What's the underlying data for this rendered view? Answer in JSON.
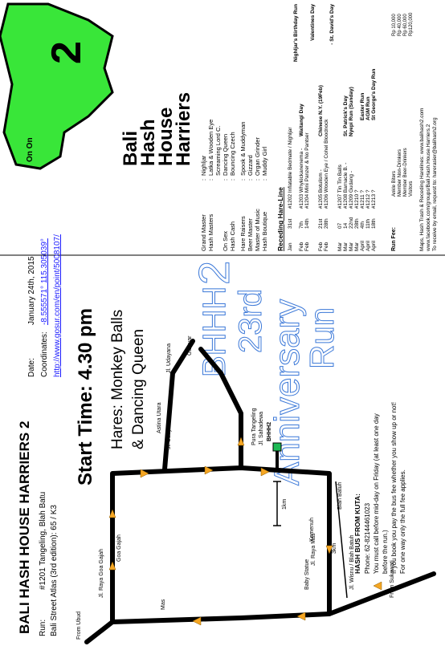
{
  "main": {
    "title": "BALI HASH HOUSE HARRIERS 2",
    "run_label": "Run:",
    "run": "#1201 Tangeling, Blah Batu",
    "atlas": "Bali Street Atlas (3rd edition): 65 / K3",
    "date_label": "Date:",
    "date": "January 24th, 2015",
    "coords_label": "Coordinates:",
    "coords": "-8.555571° 115.305039°",
    "url": "http://www.gosur.com/en/point/5008107/",
    "start_time": "Start Time: 4.30 pm",
    "hares_1": "Hares: Monkey Balls",
    "hares_2": "& Dancing Queen",
    "anniv": [
      "BHHH",
      "2",
      "23rd",
      "Anniversary",
      "Run"
    ]
  },
  "bus": {
    "title": "HASH BUS FROM KUTA:",
    "lines": [
      "Phone: 62-82144461023",
      "You must call before mid-day on Friday  (at least one day",
      "before the run.)",
      "If you book you pay the bus fee whether you show up or not!",
      "For one way only the full fee applies."
    ]
  },
  "map": {
    "labels": [
      "From Ubud",
      "Jl. Raya Goa Gajah",
      "Goa Gajah",
      "Mas",
      "Jl. Raya Mas",
      "Jl. Udayana",
      "Jl. Udayana",
      "Astina Utara",
      "Gianyar",
      "Pura Tangeling",
      "Jl. Sahadewa",
      "BHHH2",
      "1km",
      "Blah Batuh",
      "Kemenuh",
      "3km",
      "Baby Statue",
      "Jl. Wisnu / Blah Batuh",
      "From Sukawati"
    ]
  },
  "logo": {
    "on_on": "On On",
    "lines": [
      "Bali",
      "Hash",
      "House",
      "Harriers"
    ],
    "two": "2"
  },
  "staff": [
    {
      "role": "Grand Master",
      "name": "Nighljar"
    },
    {
      "role": "Hash Masters",
      "name": "Latka & Wooden Eye"
    },
    {
      "name": "Screaming Lord C."
    },
    {
      "role": "On Sex",
      "name": "Dancing Queen"
    },
    {
      "role": "Hash Cash",
      "name": "Bouncing Czech"
    },
    {
      "role": "Hare Raisers",
      "name": "Spook & Muddyman"
    },
    {
      "role": "Beer Master",
      "name": "Gizzard"
    },
    {
      "role": "Master of Music",
      "name": "Organ Grinder"
    },
    {
      "role": "Hash Boutique",
      "name": "Muddy Girl"
    }
  ],
  "hare_line": {
    "title": "Receding Hare-Line",
    "rows": [
      {
        "month": "Jan",
        "day": "31st",
        "run": "#1202 Inflatable Bedmate / Nighljar",
        "note": "Nighljar's Birthday Run"
      },
      {
        "month": "Feb",
        "day": "7th",
        "run": "#1203 Whykickanenema -",
        "event": "Waitangi Day"
      },
      {
        "month": "Feb",
        "day": "14th",
        "run": "#1204 Mini Panzer & No Pantser",
        "note": "Valentines Day"
      },
      {
        "month": "Feb",
        "day": "21st",
        "run": "#1205 Botulism -",
        "event": "Chinese N.Y. (19Feb)"
      },
      {
        "month": "Feb",
        "day": "28th",
        "run": "#1206 Wooden Eye / Cohel Bloodnock",
        "note": "- St. David's Day"
      },
      {
        "month": "Mar",
        "day": "07",
        "run": "#1207 Tin Tin Balls"
      },
      {
        "month": "Mar",
        "day": "14",
        "run": "#1208 Barnacle B. -",
        "event": "St. Patrick's Day"
      },
      {
        "month": "Mar",
        "day": "22nd",
        "run": "#1209 Gudang -",
        "event": "Nyepi Run (Sunday)"
      },
      {
        "month": "Mar",
        "day": "28th",
        "run": "#1210 ?"
      },
      {
        "month": "April",
        "day": "4th",
        "run": "#1211 ?",
        "event": "Easter Run"
      },
      {
        "month": "April",
        "day": "11th",
        "run": "#1212 ?",
        "event": "AGM Run"
      },
      {
        "month": "April",
        "day": "18th",
        "run": "#1213 ?",
        "event": "St George's Day Run"
      }
    ]
  },
  "run_fee": {
    "title": "Run Fee:",
    "items": [
      {
        "name": "Ankle Biters",
        "price": "Rp  10,000"
      },
      {
        "name": "Member Non-Drinkers",
        "price": "Rp  40,000"
      },
      {
        "name": "Member Beer-Drinkers",
        "price": "Rp  60,000"
      },
      {
        "name": "Visitors",
        "price": "Rp120,000"
      }
    ],
    "footer": [
      "Maps, Hash Trash & Receding Harelines: www.balihash2.com",
      "www.facebook.com/groups/Bali.Hash.House.Harriers.2",
      "To receive by email, request to: harerasier@balihash2.org"
    ]
  }
}
